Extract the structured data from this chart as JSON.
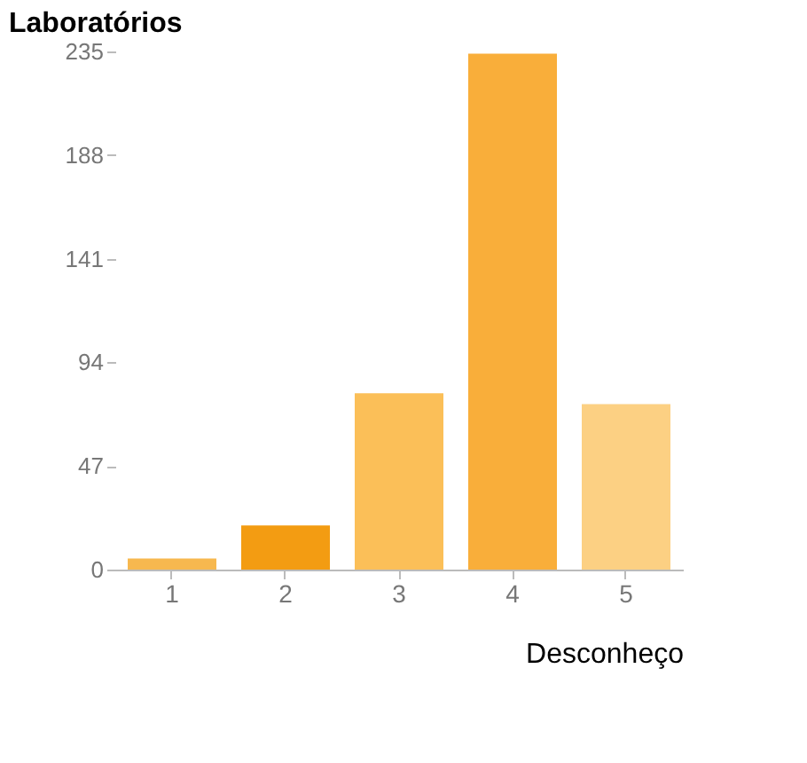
{
  "chart_data": {
    "type": "bar",
    "title": "Laboratórios",
    "xlabel": "Desconheço",
    "categories": [
      "1",
      "2",
      "3",
      "4",
      "5"
    ],
    "values": [
      5,
      20,
      80,
      234,
      75
    ],
    "colors": [
      "#f7b84f",
      "#f39c12",
      "#fbbf58",
      "#f9ae3a",
      "#fcd083"
    ],
    "ylim": [
      0,
      235
    ],
    "yticks": [
      0,
      47,
      94,
      141,
      188,
      235
    ],
    "grid": false
  }
}
